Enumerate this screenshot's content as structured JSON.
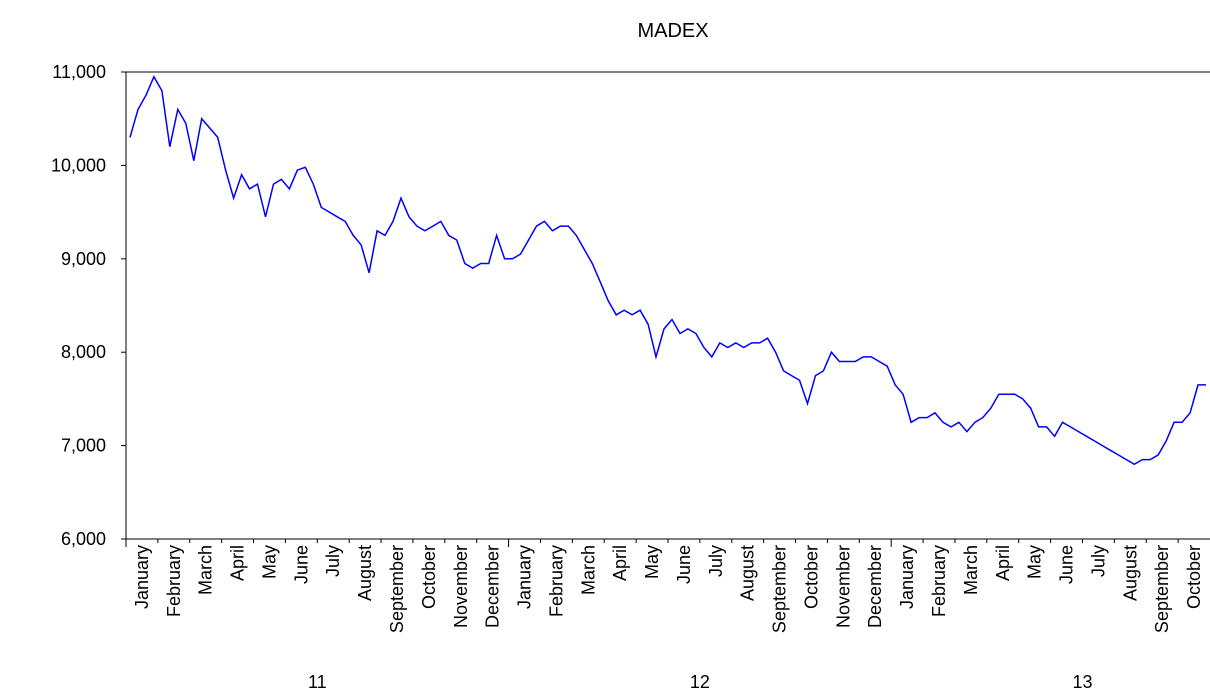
{
  "chart_data": {
    "type": "line",
    "title": "MADEX",
    "color": "#0000ff",
    "categories": [
      "January",
      "February",
      "March",
      "April",
      "May",
      "June",
      "July",
      "August",
      "September",
      "October",
      "November",
      "December",
      "January",
      "February",
      "March",
      "April",
      "May",
      "June",
      "July",
      "August",
      "September",
      "October",
      "November",
      "December",
      "January",
      "February",
      "March",
      "April",
      "May",
      "June",
      "July",
      "August",
      "September",
      "October"
    ],
    "groups": [
      "11",
      "12",
      "13"
    ],
    "values": [
      [
        10300,
        10600,
        10750,
        10950
      ],
      [
        10800,
        10200,
        10600,
        10450
      ],
      [
        10050,
        10500,
        10400,
        10300
      ],
      [
        9950,
        9650,
        9900,
        9750
      ],
      [
        9800,
        9450,
        9800,
        9850
      ],
      [
        9750,
        9950,
        9980,
        9800
      ],
      [
        9550,
        9500,
        9450,
        9400
      ],
      [
        9250,
        9150,
        8850,
        9300
      ],
      [
        9250,
        9400,
        9650,
        9450
      ],
      [
        9350,
        9300,
        9350,
        9400
      ],
      [
        9250,
        9200,
        8950,
        8900
      ],
      [
        8950,
        8950,
        9250,
        9000
      ],
      [
        9000,
        9050,
        9200,
        9350
      ],
      [
        9400,
        9300,
        9350,
        9350
      ],
      [
        9250,
        9100,
        8950,
        8750
      ],
      [
        8550,
        8400,
        8450,
        8400
      ],
      [
        8450,
        8300,
        7950,
        8250
      ],
      [
        8350,
        8200,
        8250,
        8200
      ],
      [
        8050,
        7950,
        8100,
        8050
      ],
      [
        8100,
        8050,
        8100,
        8100
      ],
      [
        8150,
        8000,
        7800,
        7750
      ],
      [
        7700,
        7450,
        7750,
        7800
      ],
      [
        8000,
        7900,
        7900,
        7900
      ],
      [
        7950,
        7950,
        7900,
        7850
      ],
      [
        7650,
        7550,
        7250,
        7300
      ],
      [
        7300,
        7350,
        7250,
        7200
      ],
      [
        7250,
        7150,
        7250,
        7300
      ],
      [
        7400,
        7550,
        7550,
        7550
      ],
      [
        7500,
        7400,
        7200,
        7200
      ],
      [
        7100,
        7250,
        7200,
        7150
      ],
      [
        7100,
        7050,
        7000,
        6950
      ],
      [
        6900,
        6850,
        6800,
        6850
      ],
      [
        6850,
        6900,
        7050,
        7250
      ],
      [
        7250,
        7350,
        7650,
        7650
      ]
    ],
    "ylim": [
      6000,
      11000
    ],
    "yticks": [
      {
        "value": 6000,
        "label": "6,000"
      },
      {
        "value": 7000,
        "label": "7,000"
      },
      {
        "value": 8000,
        "label": "8,000"
      },
      {
        "value": 9000,
        "label": "9,000"
      },
      {
        "value": 10000,
        "label": "10,000"
      },
      {
        "value": 11000,
        "label": "11,000"
      }
    ]
  }
}
